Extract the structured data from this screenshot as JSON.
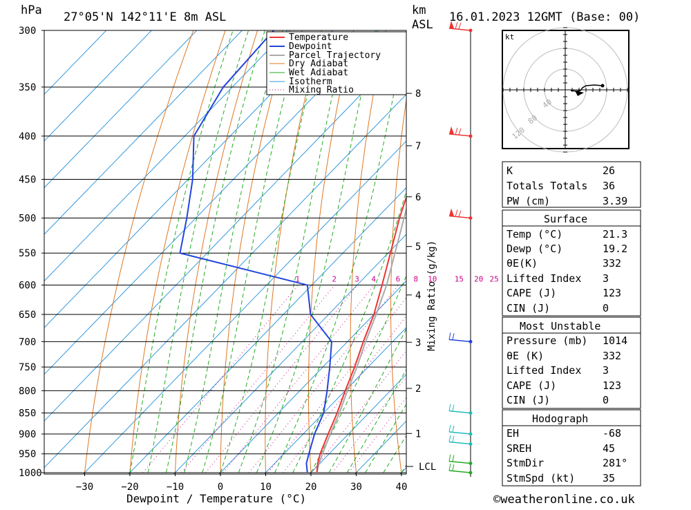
{
  "header": {
    "pressure_unit": "hPa",
    "location": "27°05'N 142°11'E 8m ASL",
    "km_label": "km",
    "asl_label": "ASL",
    "datetime": "16.01.2023 12GMT (Base: 00)"
  },
  "axes": {
    "xlabel": "Dewpoint / Temperature (°C)",
    "mixing_label": "Mixing Ratio (g/kg)",
    "pressure_ticks": [
      "300",
      "350",
      "400",
      "450",
      "500",
      "550",
      "600",
      "650",
      "700",
      "750",
      "800",
      "850",
      "900",
      "950",
      "1000"
    ],
    "temp_ticks": [
      "−30",
      "−20",
      "−10",
      "0",
      "10",
      "20",
      "30",
      "40"
    ],
    "km_ticks": [
      "8",
      "7",
      "6",
      "5",
      "4",
      "3",
      "2",
      "1"
    ],
    "lcl_label": "LCL",
    "mixing_ticks": [
      "1",
      "2",
      "3",
      "4",
      "6",
      "8",
      "10",
      "15",
      "20",
      "25"
    ]
  },
  "legend": {
    "temperature": "Temperature",
    "dewpoint": "Dewpoint",
    "parcel": "Parcel Trajectory",
    "dry": "Dry Adiabat",
    "wet": "Wet Adiabat",
    "isotherm": "Isotherm",
    "mixing": "Mixing Ratio"
  },
  "colors": {
    "temperature": "#ee3333",
    "dewpoint": "#2244dd",
    "parcel": "#aaaaaa",
    "dry": "#dd7722",
    "wet": "#22aa22",
    "isotherm": "#3399dd",
    "mixing": "#cc0088"
  },
  "hodograph": {
    "unit": "kt",
    "rings": [
      "40",
      "80",
      "120"
    ]
  },
  "indices": {
    "k_label": "K",
    "k_value": "26",
    "tt_label": "Totals Totals",
    "tt_value": "36",
    "pw_label": "PW (cm)",
    "pw_value": "3.39"
  },
  "surface": {
    "title": "Surface",
    "temp_label": "Temp (°C)",
    "temp_value": "21.3",
    "dewp_label": "Dewp (°C)",
    "dewp_value": "19.2",
    "theta_label": "θE(K)",
    "theta_value": "332",
    "li_label": "Lifted Index",
    "li_value": "3",
    "cape_label": "CAPE (J)",
    "cape_value": "123",
    "cin_label": "CIN (J)",
    "cin_value": "0"
  },
  "most_unstable": {
    "title": "Most Unstable",
    "pressure_label": "Pressure (mb)",
    "pressure_value": "1014",
    "theta_label": "θE (K)",
    "theta_value": "332",
    "li_label": "Lifted Index",
    "li_value": "3",
    "cape_label": "CAPE (J)",
    "cape_value": "123",
    "cin_label": "CIN (J)",
    "cin_value": "0"
  },
  "hodo_table": {
    "title": "Hodograph",
    "eh_label": "EH",
    "eh_value": "-68",
    "sreh_label": "SREH",
    "sreh_value": "45",
    "stmdir_label": "StmDir",
    "stmdir_value": "281°",
    "stmspd_label": "StmSpd (kt)",
    "stmspd_value": "35"
  },
  "footer": {
    "copyright": "©weatheronline.co.uk"
  },
  "chart_data": {
    "type": "line",
    "title": "27°05'N 142°11'E 8m ASL",
    "subtitle": "16.01.2023 12GMT (Base: 00)",
    "xlabel": "Dewpoint / Temperature (°C)",
    "ylabel": "hPa",
    "xlim": [
      -40,
      40
    ],
    "ylim": [
      1000,
      300
    ],
    "y_scale": "log",
    "grid": true,
    "legend_position": "top-right",
    "series": [
      {
        "name": "Temperature",
        "color": "#ee3333",
        "pressure": [
          1000,
          975,
          950,
          900,
          850,
          800,
          750,
          700,
          650,
          600,
          550,
          500,
          450,
          400,
          375,
          350,
          300
        ],
        "values": [
          21.3,
          19.5,
          18,
          15.5,
          13,
          10,
          7,
          3.5,
          0,
          -4.5,
          -9.5,
          -15,
          -20.5,
          -27.5,
          -32,
          -36,
          -46
        ]
      },
      {
        "name": "Dewpoint",
        "color": "#2244dd",
        "pressure": [
          1000,
          975,
          950,
          900,
          850,
          800,
          750,
          700,
          650,
          600,
          550,
          500,
          450,
          400,
          350,
          300
        ],
        "values": [
          19.2,
          17,
          15.5,
          12.5,
          10,
          6,
          1.5,
          -3.5,
          -14,
          -21,
          -56,
          -62,
          -69,
          -78,
          -82,
          -83
        ]
      },
      {
        "name": "Parcel Trajectory",
        "color": "#aaaaaa",
        "pressure": [
          1000,
          975,
          950,
          900,
          850,
          800,
          750,
          700,
          650,
          600,
          550,
          500,
          450,
          400,
          350,
          300
        ],
        "values": [
          21.3,
          19.8,
          18.5,
          16,
          13.5,
          10.5,
          7.5,
          4,
          0.5,
          -3.5,
          -8.5,
          -14,
          -20,
          -27,
          -35.5,
          -45
        ]
      }
    ],
    "mixing_ratio_lines": [
      1,
      2,
      3,
      4,
      6,
      8,
      10,
      15,
      20,
      25
    ],
    "km_heights": [
      1,
      2,
      3,
      4,
      5,
      6,
      7,
      8
    ],
    "wind_barbs_hpa": [
      300,
      400,
      500,
      700,
      850,
      900,
      925,
      975,
      1000
    ]
  }
}
